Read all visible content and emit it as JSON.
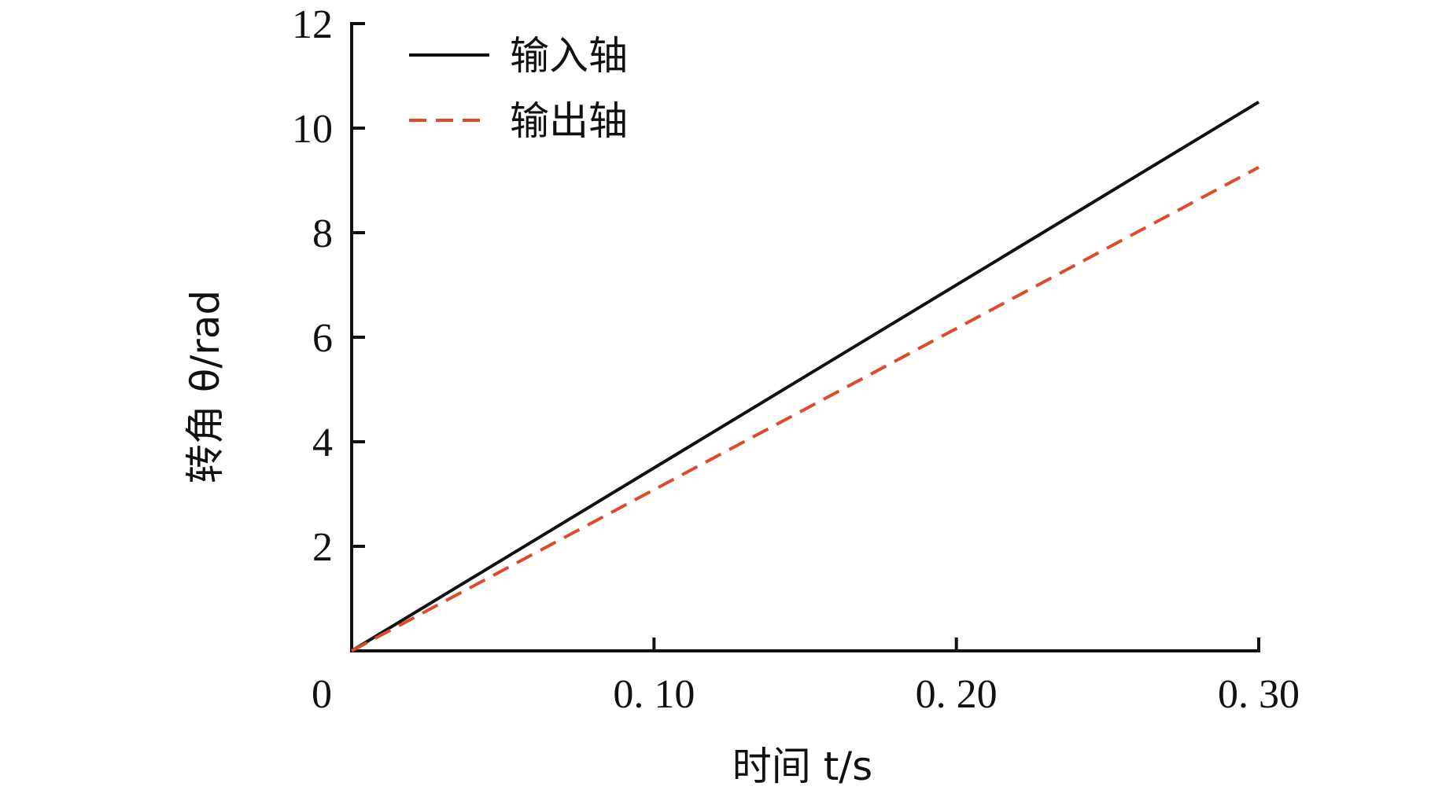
{
  "chart_data": {
    "type": "line",
    "title": "",
    "xlabel": "时间 t/s",
    "ylabel": "转角 θ/rad",
    "xlim": [
      0,
      0.3
    ],
    "ylim": [
      0,
      12
    ],
    "x_ticks": [
      {
        "value": 0,
        "label": "0"
      },
      {
        "value": 0.1,
        "label": "0. 10"
      },
      {
        "value": 0.2,
        "label": "0. 20"
      },
      {
        "value": 0.3,
        "label": "0. 30"
      }
    ],
    "y_ticks": [
      {
        "value": 2,
        "label": "2"
      },
      {
        "value": 4,
        "label": "4"
      },
      {
        "value": 6,
        "label": "6"
      },
      {
        "value": 8,
        "label": "8"
      },
      {
        "value": 10,
        "label": "10"
      },
      {
        "value": 12,
        "label": "12"
      }
    ],
    "grid": false,
    "legend_position": "top-left",
    "series": [
      {
        "name": "输入轴",
        "style": "solid",
        "color": "#111111",
        "x": [
          0,
          0.3
        ],
        "y": [
          0,
          10.5
        ]
      },
      {
        "name": "输出轴",
        "style": "dashed",
        "color": "#e04a26",
        "x": [
          0,
          0.3
        ],
        "y": [
          0,
          9.25
        ]
      }
    ]
  }
}
